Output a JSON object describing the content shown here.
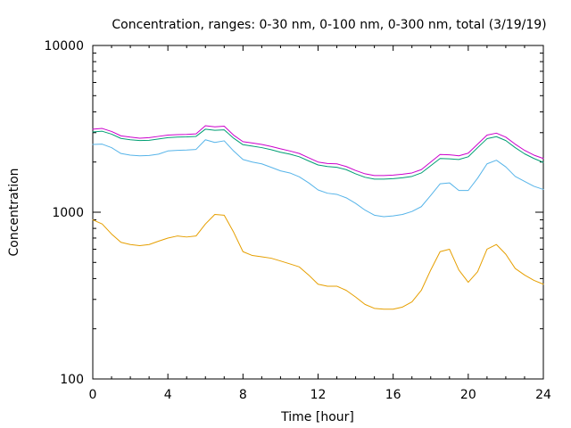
{
  "chart_data": {
    "type": "line",
    "title": "Concentration, ranges: 0-30 nm, 0-100 nm, 0-300 nm, total (3/19/19)",
    "xlabel": "Time [hour]",
    "ylabel": "Concentration",
    "xlim": [
      0,
      24
    ],
    "ylim": [
      100,
      10000
    ],
    "yscale": "log",
    "x_ticks": [
      0,
      4,
      8,
      12,
      16,
      20,
      24
    ],
    "x_tick_labels": [
      "0",
      "4",
      "8",
      "12",
      "16",
      "20",
      "24"
    ],
    "y_ticks": [
      100,
      1000,
      10000
    ],
    "y_tick_labels": [
      "100",
      "1000",
      "10000"
    ],
    "grid": false,
    "legend": "none",
    "x": [
      0,
      0.5,
      1,
      1.5,
      2,
      2.5,
      3,
      3.5,
      4,
      4.5,
      5,
      5.5,
      6,
      6.5,
      7,
      7.5,
      8,
      8.5,
      9,
      9.5,
      10,
      10.5,
      11,
      11.5,
      12,
      12.5,
      13,
      13.5,
      14,
      14.5,
      15,
      15.5,
      16,
      16.5,
      17,
      17.5,
      18,
      18.5,
      19,
      19.5,
      20,
      20.5,
      21,
      21.5,
      22,
      22.5,
      23,
      23.5,
      24
    ],
    "series": [
      {
        "color": "#cc00cc",
        "values": [
          3150,
          3180,
          3050,
          2870,
          2820,
          2780,
          2800,
          2850,
          2900,
          2920,
          2930,
          2950,
          3300,
          3250,
          3280,
          2900,
          2650,
          2600,
          2550,
          2480,
          2400,
          2330,
          2250,
          2120,
          2000,
          1960,
          1950,
          1880,
          1780,
          1700,
          1660,
          1660,
          1670,
          1690,
          1720,
          1800,
          2000,
          2220,
          2210,
          2180,
          2260,
          2560,
          2900,
          2980,
          2820,
          2560,
          2350,
          2200,
          2100
        ]
      },
      {
        "color": "#009e73",
        "values": [
          3030,
          3060,
          2940,
          2770,
          2720,
          2690,
          2700,
          2750,
          2800,
          2820,
          2830,
          2850,
          3150,
          3100,
          3120,
          2780,
          2540,
          2490,
          2440,
          2370,
          2290,
          2230,
          2150,
          2030,
          1920,
          1880,
          1860,
          1800,
          1700,
          1620,
          1580,
          1580,
          1590,
          1610,
          1640,
          1720,
          1900,
          2100,
          2090,
          2070,
          2150,
          2440,
          2760,
          2840,
          2690,
          2440,
          2240,
          2100,
          1990
        ]
      },
      {
        "color": "#56b4e9",
        "values": [
          2550,
          2560,
          2440,
          2250,
          2200,
          2180,
          2190,
          2230,
          2330,
          2350,
          2360,
          2380,
          2720,
          2620,
          2680,
          2330,
          2070,
          2000,
          1950,
          1860,
          1770,
          1720,
          1630,
          1500,
          1360,
          1300,
          1280,
          1220,
          1130,
          1030,
          960,
          940,
          950,
          970,
          1010,
          1080,
          1260,
          1480,
          1500,
          1350,
          1350,
          1600,
          1950,
          2050,
          1870,
          1640,
          1530,
          1430,
          1370
        ]
      },
      {
        "color": "#e69f00",
        "values": [
          900,
          850,
          740,
          660,
          640,
          630,
          640,
          670,
          700,
          720,
          710,
          720,
          850,
          970,
          960,
          760,
          580,
          550,
          540,
          530,
          510,
          490,
          470,
          420,
          370,
          360,
          360,
          340,
          310,
          280,
          265,
          262,
          262,
          270,
          290,
          340,
          450,
          580,
          600,
          450,
          380,
          440,
          600,
          640,
          560,
          460,
          420,
          390,
          370
        ]
      }
    ]
  }
}
